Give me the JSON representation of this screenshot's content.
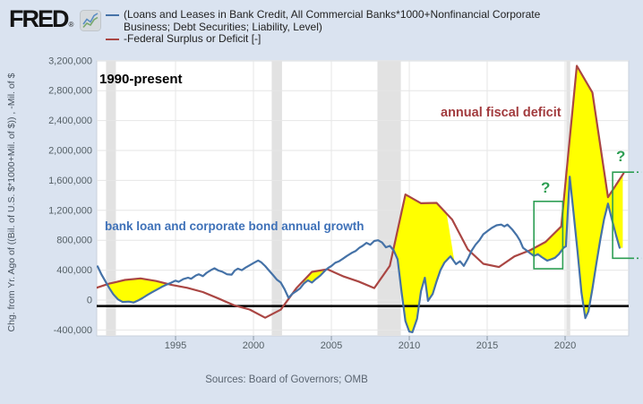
{
  "header": {
    "logo": "FRED",
    "registered": "®"
  },
  "legend": {
    "items": [
      {
        "color": "#4572a7",
        "lines": [
          "(Loans and Leases in Bank Credit, All Commercial Banks*1000+Nonfinancial Corporate",
          "Business; Debt Securities; Liability, Level)"
        ]
      },
      {
        "color": "#aa4643",
        "lines": [
          "-Federal Surplus or Deficit [-]"
        ]
      }
    ]
  },
  "annotations": {
    "period": "1990-present",
    "deficit": "annual fiscal deficit",
    "growth": "bank loan and corporate bond annual growth",
    "q1": "?",
    "q2": "?"
  },
  "source": "Sources: Board of Governors; OMB",
  "colors": {
    "background": "#dae3f0",
    "plot_bg": "#ffffff",
    "grid": "#e6e6e6",
    "plot_border": "#c9d2dc",
    "recession": "#e2e2e2",
    "loans_line": "#4572a7",
    "deficit_line": "#aa4643",
    "fill": "#ffff00",
    "zero_line": "#000000",
    "annotation_green": "#2d9e53",
    "deficit_text": "#a23b3e",
    "growth_text": "#3e71b8",
    "period_text": "#000000",
    "axis_text": "#556066",
    "tick_mark": "#8a97a5"
  },
  "chart_data": {
    "type": "line",
    "title": "1990-present",
    "x_axis": {
      "min": 1989.94,
      "max": 2024.08,
      "ticks": [
        [
          1995,
          "1995"
        ],
        [
          2000,
          "2000"
        ],
        [
          2005,
          "2005"
        ],
        [
          2010,
          "2010"
        ],
        [
          2015,
          "2015"
        ],
        [
          2020,
          "2020"
        ]
      ]
    },
    "y_axis": {
      "label": "Chg. from Yr. Ago of ((Bil. of U.S. $*1000+Mil. of $)) , -Mil. of $",
      "min": -478800,
      "max": 3197600,
      "ticks": [
        [
          3200000,
          "3,200,000"
        ],
        [
          2800000,
          "2,800,000"
        ],
        [
          2400000,
          "2,400,000"
        ],
        [
          2000000,
          "2,000,000"
        ],
        [
          1600000,
          "1,600,000"
        ],
        [
          1200000,
          "1,200,000"
        ],
        [
          800000,
          "800,000"
        ],
        [
          400000,
          "400,000"
        ],
        [
          0,
          "0"
        ],
        [
          -400000,
          "-400,000"
        ]
      ]
    },
    "zero_line_value": -80000,
    "recessions": [
      [
        1990.54,
        1991.17
      ],
      [
        2001.17,
        2001.83
      ],
      [
        2007.96,
        2009.46
      ],
      [
        2020.08,
        2020.33
      ]
    ],
    "fill_regions": [
      {
        "x1": 1990.45,
        "x2": 1995.0
      },
      {
        "x1": 2003.2,
        "x2": 2004.9
      },
      {
        "x1": 2009.0,
        "x2": 2012.9,
        "taper_from": 2012.4
      },
      {
        "x1": 2017.6,
        "x2": 2023.7
      }
    ],
    "boxes": [
      {
        "x1": 2018.0,
        "x2": 2019.85,
        "v_top": 1320000,
        "v_bottom": 420000,
        "style": "solid"
      },
      {
        "x1": 2023.05,
        "x2": 2024.31,
        "x2_dotted": 2024.89,
        "v_top": 1710000,
        "v_bottom": 560000,
        "style": "open-right"
      }
    ],
    "series": [
      {
        "name": "(Loans and Leases in Bank Credit, All Commercial Banks*1000+Nonfinancial Corporate Business; Debt Securities; Liability, Level)",
        "color": "#4572a7",
        "points": [
          [
            1990.0,
            450000
          ],
          [
            1990.25,
            340000
          ],
          [
            1990.5,
            250000
          ],
          [
            1990.75,
            160000
          ],
          [
            1991.0,
            80000
          ],
          [
            1991.3,
            10000
          ],
          [
            1991.6,
            -25000
          ],
          [
            1992.0,
            -20000
          ],
          [
            1992.3,
            -32000
          ],
          [
            1992.6,
            -5000
          ],
          [
            1992.9,
            30000
          ],
          [
            1993.2,
            70000
          ],
          [
            1993.5,
            105000
          ],
          [
            1993.8,
            140000
          ],
          [
            1994.1,
            175000
          ],
          [
            1994.4,
            205000
          ],
          [
            1994.7,
            230000
          ],
          [
            1995.0,
            260000
          ],
          [
            1995.2,
            245000
          ],
          [
            1995.5,
            280000
          ],
          [
            1995.8,
            300000
          ],
          [
            1996.0,
            285000
          ],
          [
            1996.3,
            330000
          ],
          [
            1996.5,
            345000
          ],
          [
            1996.75,
            320000
          ],
          [
            1997.0,
            365000
          ],
          [
            1997.3,
            405000
          ],
          [
            1997.5,
            425000
          ],
          [
            1997.75,
            395000
          ],
          [
            1998.0,
            380000
          ],
          [
            1998.3,
            345000
          ],
          [
            1998.6,
            340000
          ],
          [
            1998.8,
            395000
          ],
          [
            1999.0,
            420000
          ],
          [
            1999.25,
            400000
          ],
          [
            1999.5,
            435000
          ],
          [
            1999.75,
            465000
          ],
          [
            2000.0,
            495000
          ],
          [
            2000.3,
            530000
          ],
          [
            2000.5,
            505000
          ],
          [
            2000.75,
            455000
          ],
          [
            2001.0,
            395000
          ],
          [
            2001.25,
            335000
          ],
          [
            2001.5,
            275000
          ],
          [
            2001.75,
            235000
          ],
          [
            2002.0,
            145000
          ],
          [
            2002.25,
            30000
          ],
          [
            2002.5,
            85000
          ],
          [
            2002.75,
            120000
          ],
          [
            2003.0,
            160000
          ],
          [
            2003.25,
            225000
          ],
          [
            2003.5,
            265000
          ],
          [
            2003.75,
            235000
          ],
          [
            2004.0,
            280000
          ],
          [
            2004.3,
            330000
          ],
          [
            2004.6,
            395000
          ],
          [
            2004.8,
            430000
          ],
          [
            2005.0,
            455000
          ],
          [
            2005.25,
            500000
          ],
          [
            2005.5,
            520000
          ],
          [
            2005.75,
            555000
          ],
          [
            2006.0,
            590000
          ],
          [
            2006.3,
            630000
          ],
          [
            2006.55,
            655000
          ],
          [
            2006.8,
            700000
          ],
          [
            2007.0,
            725000
          ],
          [
            2007.25,
            765000
          ],
          [
            2007.5,
            740000
          ],
          [
            2007.75,
            790000
          ],
          [
            2008.0,
            800000
          ],
          [
            2008.25,
            770000
          ],
          [
            2008.5,
            705000
          ],
          [
            2008.75,
            725000
          ],
          [
            2009.0,
            665000
          ],
          [
            2009.25,
            545000
          ],
          [
            2009.5,
            120000
          ],
          [
            2009.75,
            -280000
          ],
          [
            2010.0,
            -420000
          ],
          [
            2010.2,
            -430000
          ],
          [
            2010.5,
            -250000
          ],
          [
            2010.75,
            120000
          ],
          [
            2011.0,
            300000
          ],
          [
            2011.2,
            -10000
          ],
          [
            2011.5,
            80000
          ],
          [
            2011.75,
            250000
          ],
          [
            2012.0,
            400000
          ],
          [
            2012.25,
            500000
          ],
          [
            2012.5,
            555000
          ],
          [
            2012.65,
            585000
          ],
          [
            2013.0,
            480000
          ],
          [
            2013.25,
            520000
          ],
          [
            2013.5,
            458000
          ],
          [
            2013.75,
            550000
          ],
          [
            2014.0,
            660000
          ],
          [
            2014.25,
            740000
          ],
          [
            2014.5,
            800000
          ],
          [
            2014.75,
            880000
          ],
          [
            2015.0,
            920000
          ],
          [
            2015.3,
            965000
          ],
          [
            2015.6,
            1000000
          ],
          [
            2015.9,
            1010000
          ],
          [
            2016.1,
            985000
          ],
          [
            2016.3,
            1010000
          ],
          [
            2016.6,
            945000
          ],
          [
            2016.9,
            865000
          ],
          [
            2017.1,
            795000
          ],
          [
            2017.3,
            700000
          ],
          [
            2017.55,
            660000
          ],
          [
            2017.8,
            620000
          ],
          [
            2018.0,
            590000
          ],
          [
            2018.25,
            615000
          ],
          [
            2018.5,
            575000
          ],
          [
            2018.85,
            528000
          ],
          [
            2019.1,
            545000
          ],
          [
            2019.35,
            565000
          ],
          [
            2019.6,
            615000
          ],
          [
            2019.9,
            700000
          ],
          [
            2020.05,
            720000
          ],
          [
            2020.3,
            1650000
          ],
          [
            2020.55,
            1150000
          ],
          [
            2020.8,
            650000
          ],
          [
            2021.05,
            100000
          ],
          [
            2021.3,
            -240000
          ],
          [
            2021.5,
            -150000
          ],
          [
            2021.75,
            150000
          ],
          [
            2022.0,
            480000
          ],
          [
            2022.25,
            800000
          ],
          [
            2022.5,
            1080000
          ],
          [
            2022.75,
            1290000
          ],
          [
            2023.0,
            1080000
          ],
          [
            2023.25,
            880000
          ],
          [
            2023.5,
            700000
          ]
        ]
      },
      {
        "name": "-Federal Surplus or Deficit [-]",
        "color": "#aa4643",
        "points": [
          [
            1989.75,
            152639
          ],
          [
            1990.75,
            221036
          ],
          [
            1991.75,
            269238
          ],
          [
            1992.75,
            290321
          ],
          [
            1993.75,
            255051
          ],
          [
            1994.75,
            203186
          ],
          [
            1995.75,
            163952
          ],
          [
            1996.75,
            107431
          ],
          [
            1997.75,
            21884
          ],
          [
            1998.75,
            -69270
          ],
          [
            1999.75,
            -125610
          ],
          [
            2000.75,
            -236241
          ],
          [
            2001.75,
            -128236
          ],
          [
            2002.75,
            157758
          ],
          [
            2003.75,
            377585
          ],
          [
            2004.75,
            412727
          ],
          [
            2005.75,
            318346
          ],
          [
            2006.75,
            248181
          ],
          [
            2007.75,
            160701
          ],
          [
            2008.75,
            458553
          ],
          [
            2009.75,
            1412688
          ],
          [
            2010.75,
            1294389
          ],
          [
            2011.75,
            1299599
          ],
          [
            2012.75,
            1076573
          ],
          [
            2013.75,
            679775
          ],
          [
            2014.75,
            484793
          ],
          [
            2015.75,
            441960
          ],
          [
            2016.75,
            584651
          ],
          [
            2017.75,
            665446
          ],
          [
            2018.75,
            779137
          ],
          [
            2019.75,
            984388
          ],
          [
            2020.75,
            3131917
          ],
          [
            2021.75,
            2775316
          ],
          [
            2022.75,
            1375389
          ],
          [
            2023.75,
            1695224
          ]
        ]
      }
    ]
  }
}
